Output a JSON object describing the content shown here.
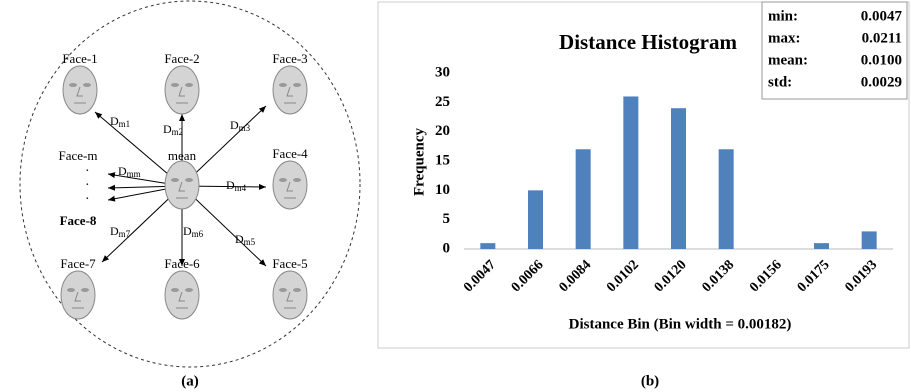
{
  "diagram": {
    "nodes": [
      {
        "label": "Face-1"
      },
      {
        "label": "Face-2"
      },
      {
        "label": "Face-3"
      },
      {
        "label": "mean"
      },
      {
        "label": "Face-4"
      },
      {
        "label": "Face-m"
      },
      {
        "label": "Face-8"
      },
      {
        "label": "Face-7"
      },
      {
        "label": "Face-6"
      },
      {
        "label": "Face-5"
      }
    ],
    "edges": [
      {
        "main": "D",
        "sub": "m1"
      },
      {
        "main": "D",
        "sub": "m2"
      },
      {
        "main": "D",
        "sub": "m3"
      },
      {
        "main": "D",
        "sub": "mm"
      },
      {
        "main": "D",
        "sub": "m4"
      },
      {
        "main": "D",
        "sub": "m7"
      },
      {
        "main": "D",
        "sub": "m6"
      },
      {
        "main": "D",
        "sub": "m5"
      }
    ],
    "caption": "(a)"
  },
  "chart_data": {
    "type": "bar",
    "title": "Distance Histogram",
    "x_label": "Distance Bin (Bin width  = 0.00182)",
    "y_label": "Frequency",
    "categories": [
      "0.0047",
      "0.0066",
      "0.0084",
      "0.0102",
      "0.0120",
      "0.0138",
      "0.0156",
      "0.0175",
      "0.0193"
    ],
    "values": [
      1,
      10,
      17,
      26,
      24,
      17,
      0,
      1,
      3
    ],
    "color": "#4f81bd",
    "ylim": [
      0,
      30
    ],
    "yticks": [
      0,
      5,
      10,
      15,
      20,
      25,
      30
    ],
    "grid": false,
    "stats": [
      {
        "label": "min:",
        "value": "0.0047"
      },
      {
        "label": "max:",
        "value": "0.0211"
      },
      {
        "label": "mean:",
        "value": "0.0100"
      },
      {
        "label": "std:",
        "value": "0.0029"
      }
    ],
    "caption": "(b)"
  }
}
